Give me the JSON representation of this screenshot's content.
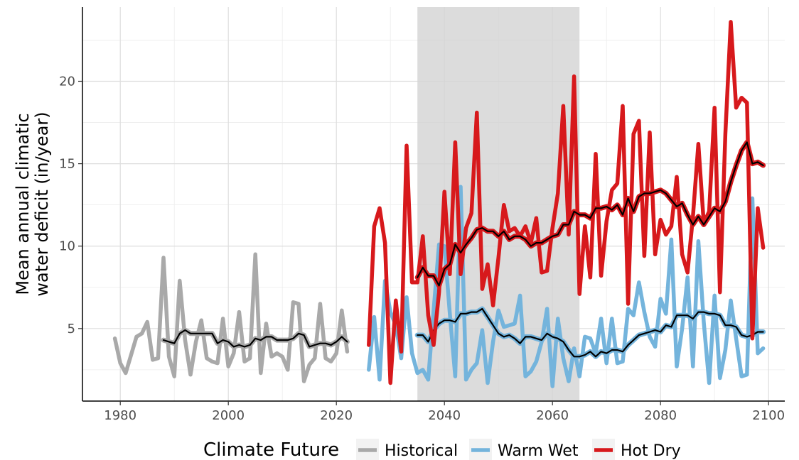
{
  "chart_data": {
    "type": "line",
    "title": "",
    "xlabel": "",
    "ylabel_lines": [
      "Mean annual climatic",
      "water deficit (in/year)"
    ],
    "xlim": [
      1973,
      2103
    ],
    "ylim": [
      0.6,
      24.5
    ],
    "x_ticks": [
      1980,
      2000,
      2020,
      2040,
      2060,
      2080,
      2100
    ],
    "y_ticks": [
      5,
      10,
      15,
      20
    ],
    "grid": true,
    "shaded_period": [
      2035,
      2065
    ],
    "legend": {
      "title": "Climate Future",
      "position": "bottom",
      "entries": [
        "Historical",
        "Warm Wet",
        "Hot Dry"
      ]
    },
    "series": [
      {
        "name": "Historical",
        "color": "#a9a9a9",
        "x": [
          1979,
          1980,
          1981,
          1982,
          1983,
          1984,
          1985,
          1986,
          1987,
          1988,
          1989,
          1990,
          1991,
          1992,
          1993,
          1994,
          1995,
          1996,
          1997,
          1998,
          1999,
          2000,
          2001,
          2002,
          2003,
          2004,
          2005,
          2006,
          2007,
          2008,
          2009,
          2010,
          2011,
          2012,
          2013,
          2014,
          2015,
          2016,
          2017,
          2018,
          2019,
          2020,
          2021,
          2022
        ],
        "y": [
          4.4,
          2.9,
          2.3,
          3.4,
          4.5,
          4.7,
          5.4,
          3.1,
          3.2,
          9.3,
          3.3,
          2.1,
          7.9,
          4.3,
          2.2,
          4.2,
          5.5,
          3.2,
          3.0,
          2.9,
          5.6,
          2.7,
          3.5,
          6.0,
          3.0,
          3.2,
          9.5,
          2.3,
          5.3,
          3.3,
          3.5,
          3.3,
          2.5,
          6.6,
          6.5,
          1.8,
          2.8,
          3.2,
          6.5,
          3.2,
          3.0,
          3.5,
          6.1,
          3.6
        ]
      },
      {
        "name": "Historical rolling mean",
        "color": "#000000",
        "x": [
          1988,
          1989,
          1990,
          1991,
          1992,
          1993,
          1994,
          1995,
          1996,
          1997,
          1998,
          1999,
          2000,
          2001,
          2002,
          2003,
          2004,
          2005,
          2006,
          2007,
          2008,
          2009,
          2010,
          2011,
          2012,
          2013,
          2014,
          2015,
          2016,
          2017,
          2018,
          2019,
          2020,
          2021,
          2022
        ],
        "y": [
          4.3,
          4.2,
          4.1,
          4.7,
          4.9,
          4.7,
          4.7,
          4.7,
          4.7,
          4.7,
          4.1,
          4.3,
          4.2,
          3.9,
          4.0,
          3.9,
          4.0,
          4.4,
          4.3,
          4.5,
          4.5,
          4.3,
          4.3,
          4.3,
          4.4,
          4.7,
          4.6,
          3.9,
          4.0,
          4.1,
          4.1,
          4.0,
          4.2,
          4.5,
          4.2
        ]
      },
      {
        "name": "Warm Wet",
        "color": "#74b4dc",
        "x": [
          2026,
          2027,
          2028,
          2029,
          2030,
          2031,
          2032,
          2033,
          2034,
          2035,
          2036,
          2037,
          2038,
          2039,
          2040,
          2041,
          2042,
          2043,
          2044,
          2045,
          2046,
          2047,
          2048,
          2049,
          2050,
          2051,
          2052,
          2053,
          2054,
          2055,
          2056,
          2057,
          2058,
          2059,
          2060,
          2061,
          2062,
          2063,
          2064,
          2065,
          2066,
          2067,
          2068,
          2069,
          2070,
          2071,
          2072,
          2073,
          2074,
          2075,
          2076,
          2077,
          2078,
          2079,
          2080,
          2081,
          2082,
          2083,
          2084,
          2085,
          2086,
          2087,
          2088,
          2089,
          2090,
          2091,
          2092,
          2093,
          2094,
          2095,
          2096,
          2097,
          2098,
          2099
        ],
        "y": [
          2.5,
          5.7,
          1.9,
          7.9,
          6.0,
          5.2,
          3.2,
          6.9,
          3.5,
          2.3,
          2.5,
          1.9,
          6.1,
          10.1,
          10.0,
          5.9,
          2.1,
          13.6,
          1.9,
          2.5,
          2.9,
          4.9,
          1.7,
          4.2,
          6.1,
          5.1,
          5.2,
          5.3,
          7.0,
          2.1,
          2.4,
          3.0,
          4.2,
          6.2,
          1.5,
          5.6,
          3.2,
          1.8,
          3.8,
          2.1,
          4.5,
          4.4,
          3.5,
          5.6,
          2.9,
          5.6,
          2.9,
          3.0,
          6.2,
          5.8,
          7.8,
          6.0,
          4.5,
          3.9,
          6.8,
          5.9,
          10.4,
          2.7,
          5.0,
          8.1,
          2.7,
          10.3,
          5.4,
          1.7,
          7.0,
          2.0,
          3.7,
          6.7,
          4.4,
          2.1,
          2.2,
          12.9,
          3.5,
          3.8
        ]
      },
      {
        "name": "Warm Wet rolling mean",
        "color": "#000000",
        "x": [
          2035,
          2036,
          2037,
          2038,
          2039,
          2040,
          2041,
          2042,
          2043,
          2044,
          2045,
          2046,
          2047,
          2048,
          2049,
          2050,
          2051,
          2052,
          2053,
          2054,
          2055,
          2056,
          2057,
          2058,
          2059,
          2060,
          2061,
          2062,
          2063,
          2064,
          2065,
          2066,
          2067,
          2068,
          2069,
          2070,
          2071,
          2072,
          2073,
          2074,
          2075,
          2076,
          2077,
          2078,
          2079,
          2080,
          2081,
          2082,
          2083,
          2084,
          2085,
          2086,
          2087,
          2088,
          2089,
          2090,
          2091,
          2092,
          2093,
          2094,
          2095,
          2096,
          2097,
          2098,
          2099
        ],
        "y": [
          4.6,
          4.6,
          4.2,
          4.9,
          5.3,
          5.5,
          5.5,
          5.4,
          5.9,
          5.9,
          6.0,
          6.0,
          6.2,
          5.7,
          5.2,
          4.7,
          4.5,
          4.6,
          4.4,
          4.1,
          4.5,
          4.5,
          4.4,
          4.3,
          4.7,
          4.5,
          4.4,
          4.2,
          3.7,
          3.3,
          3.3,
          3.4,
          3.6,
          3.3,
          3.6,
          3.5,
          3.7,
          3.7,
          3.6,
          4.0,
          4.3,
          4.6,
          4.7,
          4.8,
          4.9,
          4.8,
          5.2,
          5.1,
          5.8,
          5.8,
          5.8,
          5.6,
          6.0,
          6.0,
          5.9,
          5.9,
          5.8,
          5.2,
          5.2,
          5.1,
          4.6,
          4.5,
          4.6,
          4.8,
          4.8
        ]
      },
      {
        "name": "Hot Dry",
        "color": "#d7191c",
        "x": [
          2026,
          2027,
          2028,
          2029,
          2030,
          2031,
          2032,
          2033,
          2034,
          2035,
          2036,
          2037,
          2038,
          2039,
          2040,
          2041,
          2042,
          2043,
          2044,
          2045,
          2046,
          2047,
          2048,
          2049,
          2050,
          2051,
          2052,
          2053,
          2054,
          2055,
          2056,
          2057,
          2058,
          2059,
          2060,
          2061,
          2062,
          2063,
          2064,
          2065,
          2066,
          2067,
          2068,
          2069,
          2070,
          2071,
          2072,
          2073,
          2074,
          2075,
          2076,
          2077,
          2078,
          2079,
          2080,
          2081,
          2082,
          2083,
          2084,
          2085,
          2086,
          2087,
          2088,
          2089,
          2090,
          2091,
          2092,
          2093,
          2094,
          2095,
          2096,
          2097,
          2098,
          2099
        ],
        "y": [
          4.0,
          11.2,
          12.3,
          10.2,
          1.7,
          6.7,
          3.6,
          16.1,
          7.8,
          7.8,
          10.6,
          5.8,
          4.0,
          7.2,
          13.3,
          8.3,
          16.3,
          8.3,
          11.1,
          12.0,
          18.1,
          7.4,
          8.9,
          6.4,
          9.3,
          12.5,
          10.9,
          11.1,
          10.6,
          11.2,
          10.2,
          11.7,
          8.4,
          8.5,
          11.1,
          13.2,
          18.5,
          10.7,
          20.3,
          7.1,
          11.2,
          8.1,
          15.6,
          8.2,
          11.5,
          13.4,
          13.8,
          18.5,
          6.5,
          16.8,
          17.6,
          9.4,
          16.9,
          9.5,
          11.6,
          10.7,
          11.2,
          14.2,
          9.5,
          8.4,
          11.8,
          16.2,
          11.4,
          12.1,
          18.4,
          7.2,
          16.8,
          23.6,
          18.4,
          19.0,
          18.7,
          4.4,
          12.3,
          9.9
        ]
      },
      {
        "name": "Hot Dry rolling mean",
        "color": "#000000",
        "x": [
          2035,
          2036,
          2037,
          2038,
          2039,
          2040,
          2041,
          2042,
          2043,
          2044,
          2045,
          2046,
          2047,
          2048,
          2049,
          2050,
          2051,
          2052,
          2053,
          2054,
          2055,
          2056,
          2057,
          2058,
          2059,
          2060,
          2061,
          2062,
          2063,
          2064,
          2065,
          2066,
          2067,
          2068,
          2069,
          2070,
          2071,
          2072,
          2073,
          2074,
          2075,
          2076,
          2077,
          2078,
          2079,
          2080,
          2081,
          2082,
          2083,
          2084,
          2085,
          2086,
          2087,
          2088,
          2089,
          2090,
          2091,
          2092,
          2093,
          2094,
          2095,
          2096,
          2097,
          2098,
          2099
        ],
        "y": [
          8.1,
          8.7,
          8.2,
          8.2,
          7.6,
          8.6,
          8.9,
          10.1,
          9.6,
          10.1,
          10.5,
          11.0,
          11.1,
          10.9,
          10.9,
          10.6,
          10.9,
          10.4,
          10.6,
          10.6,
          10.4,
          10.0,
          10.2,
          10.2,
          10.4,
          10.6,
          10.7,
          11.3,
          11.3,
          12.1,
          11.9,
          11.9,
          11.7,
          12.3,
          12.3,
          12.4,
          12.2,
          12.5,
          11.9,
          12.9,
          12.1,
          13.0,
          13.2,
          13.2,
          13.3,
          13.4,
          13.2,
          12.8,
          12.4,
          12.6,
          11.9,
          11.3,
          11.8,
          11.3,
          11.8,
          12.3,
          12.1,
          12.7,
          13.9,
          14.9,
          15.8,
          16.3,
          15.0,
          15.1,
          14.9
        ]
      }
    ]
  }
}
